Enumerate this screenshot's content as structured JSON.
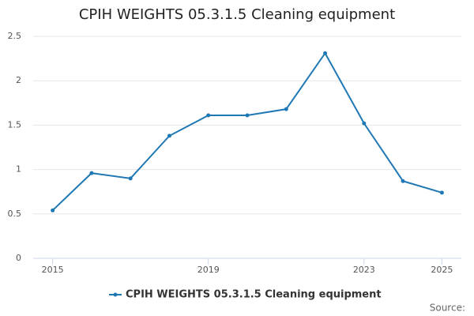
{
  "chart_data": {
    "type": "line",
    "title": "CPIH WEIGHTS 05.3.1.5 Cleaning equipment",
    "x": [
      2015,
      2016,
      2017,
      2018,
      2019,
      2020,
      2021,
      2022,
      2023,
      2024,
      2025
    ],
    "series": [
      {
        "name": "CPIH WEIGHTS 05.3.1.5 Cleaning equipment",
        "color": "#1f78b4",
        "values": [
          0.54,
          0.96,
          0.9,
          1.38,
          1.61,
          1.61,
          1.68,
          2.31,
          1.52,
          0.87,
          0.74
        ]
      }
    ],
    "xlim": [
      2014.5,
      2025.5
    ],
    "xticks": [
      2015,
      2019,
      2023,
      2025
    ],
    "ylim": [
      0,
      2.5
    ],
    "yticks": [
      0,
      0.5,
      1,
      1.5,
      2,
      2.5
    ],
    "grid": true,
    "legend": "bottom",
    "source": "Source:"
  }
}
